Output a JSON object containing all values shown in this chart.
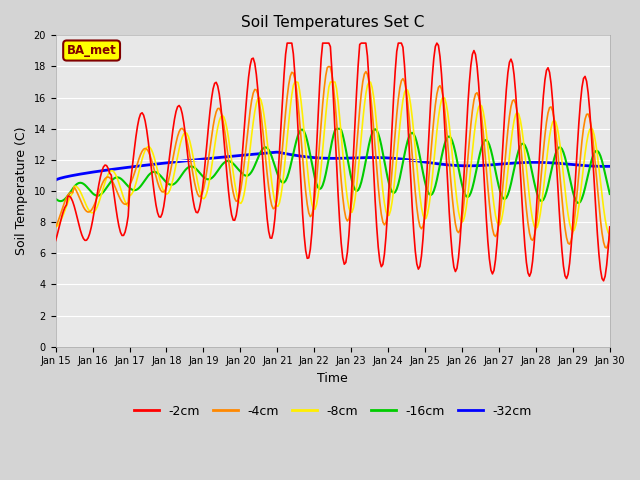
{
  "title": "Soil Temperatures Set C",
  "xlabel": "Time",
  "ylabel": "Soil Temperature (C)",
  "ylim": [
    0,
    20
  ],
  "plot_bg_color": "#e8e8e8",
  "fig_bg_color": "#d4d4d4",
  "annotation_text": "BA_met",
  "annotation_bg": "#ffff00",
  "annotation_border": "#800000",
  "legend_labels": [
    "-2cm",
    "-4cm",
    "-8cm",
    "-16cm",
    "-32cm"
  ],
  "line_colors": [
    "#ff0000",
    "#ff8800",
    "#ffee00",
    "#00cc00",
    "#0000ff"
  ],
  "line_widths": [
    1.2,
    1.2,
    1.2,
    1.5,
    2.0
  ],
  "xtick_labels": [
    "Jan 15",
    "Jan 16",
    "Jan 17",
    "Jan 18",
    "Jan 19",
    "Jan 20",
    "Jan 21",
    "Jan 22",
    "Jan 23",
    "Jan 24",
    "Jan 25",
    "Jan 26",
    "Jan 27",
    "Jan 28",
    "Jan 29",
    "Jan 30"
  ],
  "grid_color": "#ffffff",
  "title_fontsize": 11,
  "tick_fontsize": 7,
  "axis_fontsize": 9
}
